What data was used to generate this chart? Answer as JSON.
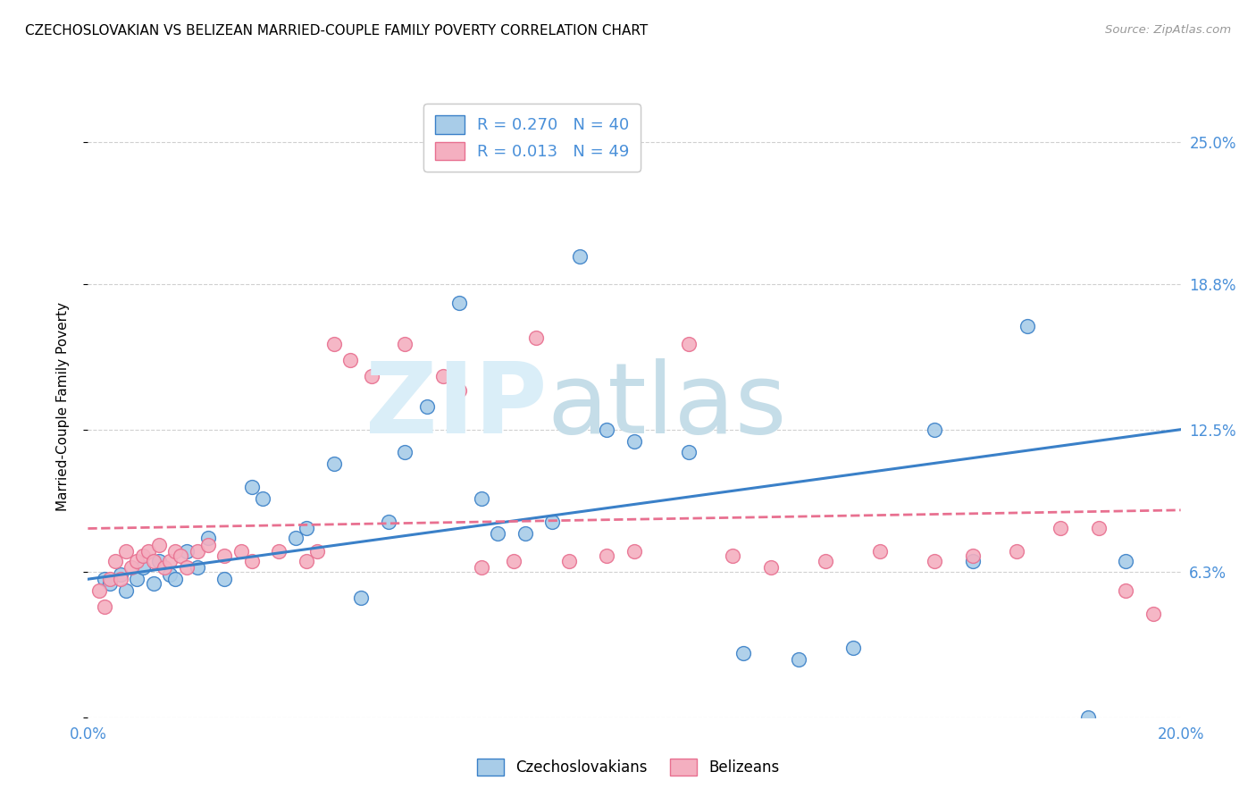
{
  "title": "CZECHOSLOVAKIAN VS BELIZEAN MARRIED-COUPLE FAMILY POVERTY CORRELATION CHART",
  "source": "Source: ZipAtlas.com",
  "ylabel": "Married-Couple Family Poverty",
  "xmin": 0.0,
  "xmax": 0.2,
  "ymin": 0.0,
  "ymax": 0.27,
  "yticks": [
    0.0,
    0.063,
    0.125,
    0.188,
    0.25
  ],
  "ytick_labels": [
    "",
    "6.3%",
    "12.5%",
    "18.8%",
    "25.0%"
  ],
  "xticks": [
    0.0,
    0.04,
    0.08,
    0.12,
    0.16,
    0.2
  ],
  "xtick_labels": [
    "0.0%",
    "",
    "",
    "",
    "",
    "20.0%"
  ],
  "gridline_color": "#d0d0d0",
  "background_color": "#ffffff",
  "blue_color": "#a8cce8",
  "pink_color": "#f4afc0",
  "line_blue": "#3a80c8",
  "line_pink": "#e87090",
  "axis_label_color": "#4a90d9",
  "czechoslovakian_x": [
    0.003,
    0.004,
    0.006,
    0.007,
    0.009,
    0.01,
    0.012,
    0.013,
    0.015,
    0.016,
    0.018,
    0.02,
    0.022,
    0.025,
    0.03,
    0.032,
    0.038,
    0.04,
    0.045,
    0.05,
    0.055,
    0.058,
    0.062,
    0.068,
    0.072,
    0.075,
    0.08,
    0.085,
    0.09,
    0.095,
    0.1,
    0.11,
    0.12,
    0.13,
    0.14,
    0.155,
    0.162,
    0.172,
    0.183,
    0.19
  ],
  "czechoslovakian_y": [
    0.06,
    0.058,
    0.062,
    0.055,
    0.06,
    0.065,
    0.058,
    0.068,
    0.062,
    0.06,
    0.072,
    0.065,
    0.078,
    0.06,
    0.1,
    0.095,
    0.078,
    0.082,
    0.11,
    0.052,
    0.085,
    0.115,
    0.135,
    0.18,
    0.095,
    0.08,
    0.08,
    0.085,
    0.2,
    0.125,
    0.12,
    0.115,
    0.028,
    0.025,
    0.03,
    0.125,
    0.068,
    0.17,
    0.0,
    0.068
  ],
  "belizean_x": [
    0.002,
    0.003,
    0.004,
    0.005,
    0.006,
    0.007,
    0.008,
    0.009,
    0.01,
    0.011,
    0.012,
    0.013,
    0.014,
    0.015,
    0.016,
    0.017,
    0.018,
    0.02,
    0.022,
    0.025,
    0.028,
    0.03,
    0.035,
    0.04,
    0.042,
    0.045,
    0.048,
    0.052,
    0.058,
    0.065,
    0.068,
    0.072,
    0.078,
    0.082,
    0.088,
    0.095,
    0.1,
    0.11,
    0.118,
    0.125,
    0.135,
    0.145,
    0.155,
    0.162,
    0.17,
    0.178,
    0.185,
    0.19,
    0.195
  ],
  "belizean_y": [
    0.055,
    0.048,
    0.06,
    0.068,
    0.06,
    0.072,
    0.065,
    0.068,
    0.07,
    0.072,
    0.068,
    0.075,
    0.065,
    0.068,
    0.072,
    0.07,
    0.065,
    0.072,
    0.075,
    0.07,
    0.072,
    0.068,
    0.072,
    0.068,
    0.072,
    0.162,
    0.155,
    0.148,
    0.162,
    0.148,
    0.142,
    0.065,
    0.068,
    0.165,
    0.068,
    0.07,
    0.072,
    0.162,
    0.07,
    0.065,
    0.068,
    0.072,
    0.068,
    0.07,
    0.072,
    0.082,
    0.082,
    0.055,
    0.045
  ]
}
